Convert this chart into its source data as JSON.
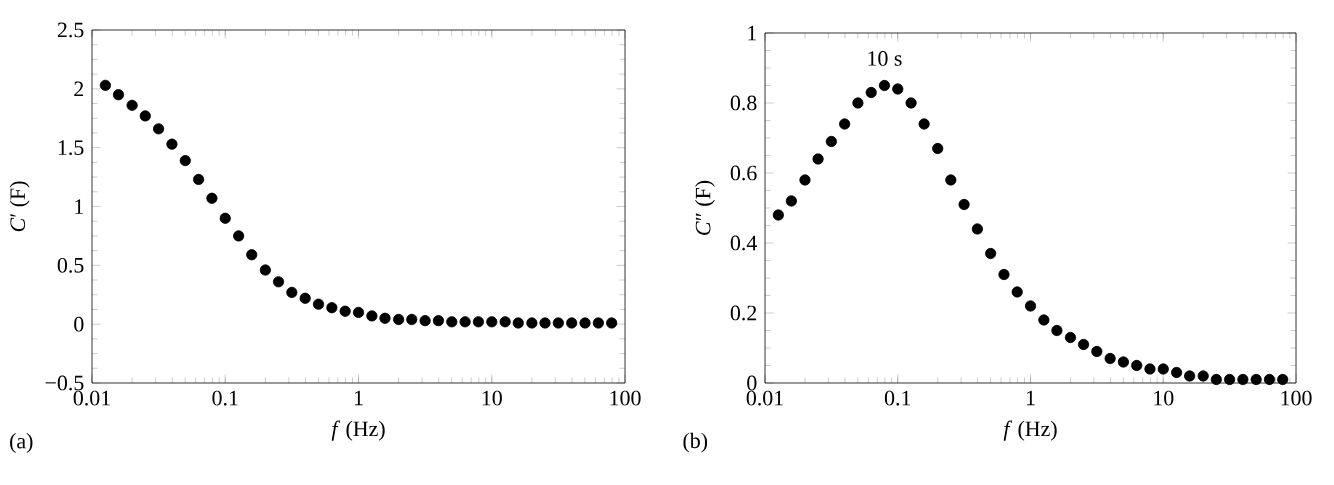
{
  "chart_data": [
    {
      "type": "scatter",
      "xlabel": "*f* (Hz)",
      "ylabel": "*C*′ (F)",
      "annotations": [
        "(a)"
      ],
      "log": "x",
      "marker": "circle",
      "grid": false,
      "x": [
        0.0126,
        0.0158,
        0.02,
        0.0251,
        0.0316,
        0.0398,
        0.0501,
        0.0631,
        0.0794,
        0.1,
        0.126,
        0.158,
        0.2,
        0.251,
        0.316,
        0.398,
        0.501,
        0.631,
        0.794,
        1,
        1.26,
        1.58,
        2,
        2.51,
        3.16,
        3.98,
        5.01,
        6.31,
        7.94,
        10,
        12.6,
        15.8,
        20,
        25.1,
        31.6,
        39.8,
        50.1,
        63.1,
        79.4
      ],
      "series": [
        {
          "color": "#000000",
          "values": [
            2.03,
            1.95,
            1.86,
            1.77,
            1.66,
            1.53,
            1.39,
            1.23,
            1.07,
            0.9,
            0.75,
            0.59,
            0.46,
            0.36,
            0.27,
            0.22,
            0.17,
            0.14,
            0.11,
            0.1,
            0.07,
            0.05,
            0.04,
            0.04,
            0.03,
            0.03,
            0.02,
            0.02,
            0.02,
            0.02,
            0.02,
            0.01,
            0.01,
            0.01,
            0.01,
            0.01,
            0.01,
            0.01,
            0.01
          ]
        }
      ],
      "xlim": [
        0.01,
        100
      ],
      "xticks": [
        0.01,
        0.1,
        1,
        10,
        100
      ],
      "ylim": [
        -0.5,
        2.5
      ],
      "yticks": [
        {
          "value": -0.5,
          "label": "−0.5"
        },
        0,
        0.5,
        1,
        1.5,
        2,
        2.5
      ]
    },
    {
      "type": "scatter",
      "xlabel": "*f* (Hz)",
      "ylabel": "*C*″ (F)",
      "annotations": [
        "(b)",
        {
          "text": "10 s",
          "x": 0.0794,
          "y": 0.85
        }
      ],
      "log": "x",
      "marker": "circle",
      "grid": false,
      "x": [
        0.0126,
        0.0158,
        0.02,
        0.0251,
        0.0316,
        0.0398,
        0.0501,
        0.0631,
        0.0794,
        0.1,
        0.126,
        0.158,
        0.2,
        0.251,
        0.316,
        0.398,
        0.501,
        0.631,
        0.794,
        1,
        1.26,
        1.58,
        2,
        2.51,
        3.16,
        3.98,
        5.01,
        6.31,
        7.94,
        10,
        12.6,
        15.8,
        20,
        25.1,
        31.6,
        39.8,
        50.1,
        63.1,
        79.4
      ],
      "series": [
        {
          "color": "#000000",
          "values": [
            0.48,
            0.52,
            0.58,
            0.64,
            0.69,
            0.74,
            0.8,
            0.83,
            0.85,
            0.84,
            0.8,
            0.74,
            0.67,
            0.58,
            0.51,
            0.44,
            0.37,
            0.31,
            0.26,
            0.22,
            0.18,
            0.15,
            0.13,
            0.11,
            0.09,
            0.07,
            0.06,
            0.05,
            0.04,
            0.04,
            0.03,
            0.02,
            0.02,
            0.01,
            0.01,
            0.01,
            0.01,
            0.01,
            0.01
          ]
        }
      ],
      "xlim": [
        0.01,
        100
      ],
      "xticks": [
        0.01,
        0.1,
        1,
        10,
        100
      ],
      "ylim": [
        0,
        1
      ],
      "yticks": [
        0,
        0.2,
        0.4,
        0.6,
        0.8,
        1
      ]
    }
  ]
}
